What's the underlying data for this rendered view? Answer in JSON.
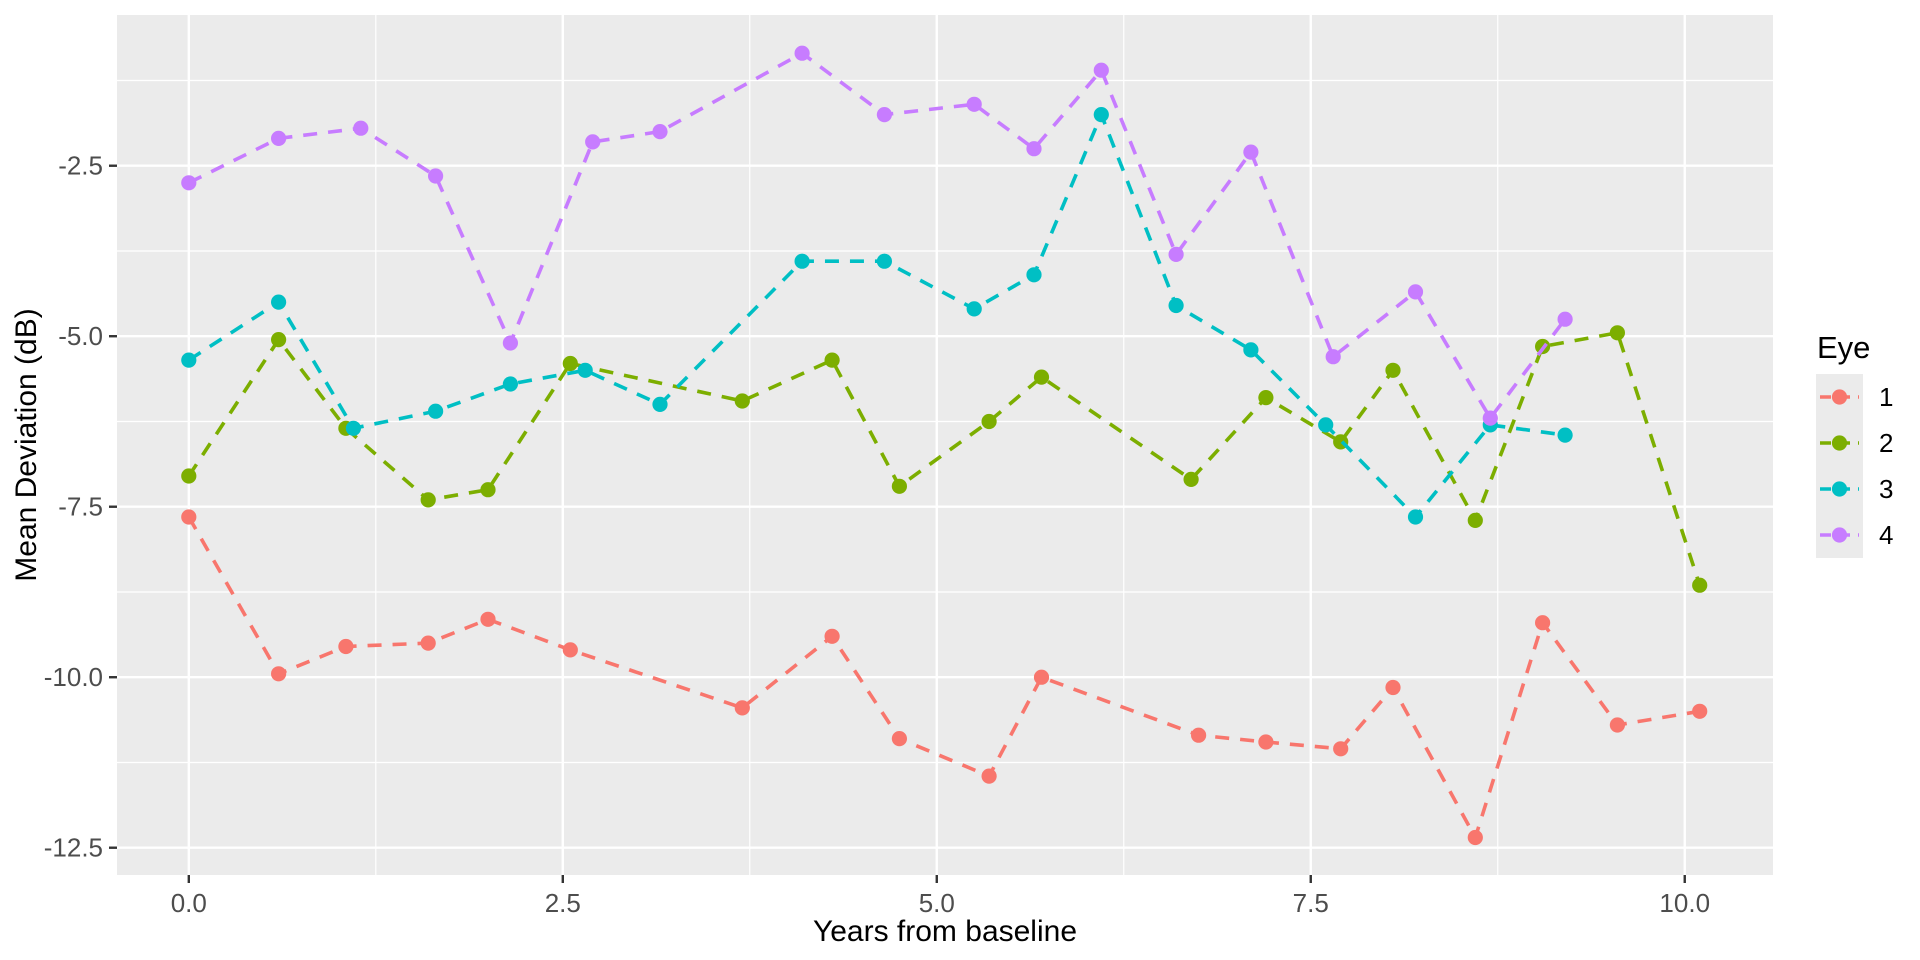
{
  "chart_data": {
    "type": "scatter",
    "subtype": "dashed-line-with-points",
    "title": "",
    "xlabel": "Years from baseline",
    "ylabel": "Mean Deviation (dB)",
    "xlim": [
      -0.48,
      10.59
    ],
    "ylim": [
      -12.9,
      -0.29
    ],
    "x_major_ticks": [
      0.0,
      2.5,
      5.0,
      7.5,
      10.0
    ],
    "x_major_tick_labels": [
      "0.0",
      "2.5",
      "5.0",
      "7.5",
      "10.0"
    ],
    "x_minor_ticks": [
      1.25,
      3.75,
      6.25,
      8.75
    ],
    "y_major_ticks": [
      -2.5,
      -5.0,
      -7.5,
      -10.0,
      -12.5
    ],
    "y_major_tick_labels": [
      "-2.5",
      "-5.0",
      "-7.5",
      "-10.0",
      "-12.5"
    ],
    "y_minor_ticks": [
      -1.25,
      -3.75,
      -6.25,
      -8.75,
      -11.25
    ],
    "grid": true,
    "panel_background": "#EBEBEB",
    "grid_color": "#FFFFFF",
    "axis_text_color": "#4D4D4D",
    "axis_title_color": "#000000",
    "tick_mark_color": "#333333",
    "legend": {
      "title": "Eye",
      "position": "right",
      "key_background": "#EBEBEB",
      "entries": [
        "1",
        "2",
        "3",
        "4"
      ]
    },
    "series": [
      {
        "name": "1",
        "color": "#F8766D",
        "points": [
          [
            0.0,
            -7.65
          ],
          [
            0.6,
            -9.95
          ],
          [
            1.05,
            -9.55
          ],
          [
            1.6,
            -9.5
          ],
          [
            2.0,
            -9.15
          ],
          [
            2.55,
            -9.6
          ],
          [
            3.7,
            -10.45
          ],
          [
            4.3,
            -9.4
          ],
          [
            4.75,
            -10.9
          ],
          [
            5.35,
            -11.45
          ],
          [
            5.7,
            -10.0
          ],
          [
            6.75,
            -10.85
          ],
          [
            7.2,
            -10.95
          ],
          [
            7.7,
            -11.05
          ],
          [
            8.05,
            -10.15
          ],
          [
            8.6,
            -12.35
          ],
          [
            9.05,
            -9.2
          ],
          [
            9.55,
            -10.7
          ],
          [
            10.1,
            -10.5
          ]
        ]
      },
      {
        "name": "2",
        "color": "#7CAE00",
        "points": [
          [
            0.0,
            -7.05
          ],
          [
            0.6,
            -5.05
          ],
          [
            1.05,
            -6.35
          ],
          [
            1.6,
            -7.4
          ],
          [
            2.0,
            -7.25
          ],
          [
            2.55,
            -5.4
          ],
          [
            3.7,
            -5.95
          ],
          [
            4.3,
            -5.35
          ],
          [
            4.75,
            -7.2
          ],
          [
            5.35,
            -6.25
          ],
          [
            5.7,
            -5.6
          ],
          [
            6.7,
            -7.1
          ],
          [
            7.2,
            -5.9
          ],
          [
            7.7,
            -6.55
          ],
          [
            8.05,
            -5.5
          ],
          [
            8.6,
            -7.7
          ],
          [
            9.05,
            -5.15
          ],
          [
            9.55,
            -4.95
          ],
          [
            10.1,
            -8.65
          ]
        ]
      },
      {
        "name": "3",
        "color": "#00BFC4",
        "points": [
          [
            0.0,
            -5.35
          ],
          [
            0.6,
            -4.5
          ],
          [
            1.1,
            -6.35
          ],
          [
            1.65,
            -6.1
          ],
          [
            2.15,
            -5.7
          ],
          [
            2.65,
            -5.5
          ],
          [
            3.15,
            -6.0
          ],
          [
            4.1,
            -3.9
          ],
          [
            4.65,
            -3.9
          ],
          [
            5.25,
            -4.6
          ],
          [
            5.65,
            -4.1
          ],
          [
            6.1,
            -1.75
          ],
          [
            6.6,
            -4.55
          ],
          [
            7.1,
            -5.2
          ],
          [
            7.6,
            -6.3
          ],
          [
            8.2,
            -7.65
          ],
          [
            8.7,
            -6.3
          ],
          [
            9.2,
            -6.45
          ]
        ]
      },
      {
        "name": "4",
        "color": "#C77CFF",
        "points": [
          [
            0.0,
            -2.75
          ],
          [
            0.6,
            -2.1
          ],
          [
            1.15,
            -1.95
          ],
          [
            1.65,
            -2.65
          ],
          [
            2.15,
            -5.1
          ],
          [
            2.7,
            -2.15
          ],
          [
            3.15,
            -2.0
          ],
          [
            4.1,
            -0.85
          ],
          [
            4.65,
            -1.75
          ],
          [
            5.25,
            -1.6
          ],
          [
            5.65,
            -2.25
          ],
          [
            6.1,
            -1.1
          ],
          [
            6.6,
            -3.8
          ],
          [
            7.1,
            -2.3
          ],
          [
            7.65,
            -5.3
          ],
          [
            8.2,
            -4.35
          ],
          [
            8.7,
            -6.2
          ],
          [
            9.2,
            -4.75
          ]
        ]
      }
    ]
  }
}
